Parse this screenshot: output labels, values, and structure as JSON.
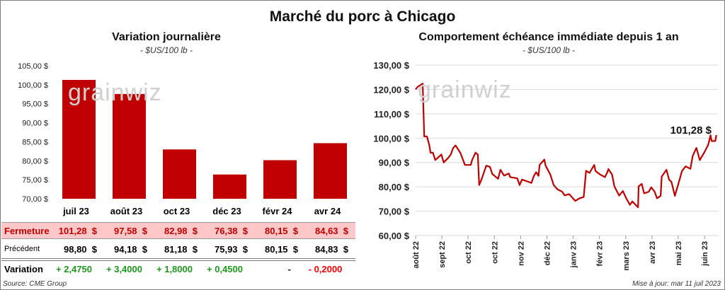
{
  "title": "Marché du porc à Chicago",
  "left": {
    "title": "Variation journalière",
    "unit": "- $US/100 lb -"
  },
  "right": {
    "title": "Comportement  échéance immédiate depuis 1 an",
    "unit": "- $US/100 lb -",
    "last_label": "101,28 $"
  },
  "watermark": "grainwiz",
  "table": {
    "months": [
      "juil 23",
      "août 23",
      "oct 23",
      "déc 23",
      "févr 24",
      "avr 24"
    ],
    "fermeture_label": "Fermeture",
    "fermeture": [
      "101,28  $",
      "97,58  $",
      "82,98  $",
      "76,38  $",
      "80,15  $",
      "84,63  $"
    ],
    "precedent_label": "Précédent",
    "precedent": [
      "98,80  $",
      "94,18  $",
      "81,18  $",
      "75,93  $",
      "80,15  $",
      "84,83  $"
    ],
    "variation_label": "Variation",
    "variation": [
      "+ 2,4750",
      "+ 3,4000",
      "+ 1,8000",
      "+ 0,4500",
      "-",
      "- 0,2000"
    ],
    "variation_sign": [
      "pos",
      "pos",
      "pos",
      "pos",
      "zero",
      "neg"
    ]
  },
  "source": "Source: CME Group",
  "updated": "Mise à jour: mar 11 juil 2023",
  "colors": {
    "bar": "#c00000",
    "line": "#c00000",
    "fermeture_bg": "#ffc7c7",
    "fermeture_text": "#c00000",
    "pos": "#1a9a1a",
    "neg": "#ff0000"
  },
  "chart_data": [
    {
      "type": "bar",
      "title": "Variation journalière",
      "ylabel": "$US/100 lb",
      "categories": [
        "juil 23",
        "août 23",
        "oct 23",
        "déc 23",
        "févr 24",
        "avr 24"
      ],
      "values": [
        101.28,
        97.58,
        82.98,
        76.38,
        80.15,
        84.63
      ],
      "ylim": [
        70,
        105
      ],
      "yticks": [
        "70,00 $",
        "75,00 $",
        "80,00 $",
        "85,00 $",
        "90,00 $",
        "95,00 $",
        "100,00 $",
        "105,00 $"
      ]
    },
    {
      "type": "line",
      "title": "Comportement  échéance immédiate depuis 1 an",
      "ylabel": "$US/100 lb",
      "ylim": [
        60,
        130
      ],
      "grid": true,
      "yticks": [
        "60,00 $",
        "70,00 $",
        "80,00 $",
        "90,00 $",
        "100,00 $",
        "110,00 $",
        "120,00 $",
        "130,00 $"
      ],
      "xticks": [
        "août 22",
        "sept 22",
        "oct 22",
        "oct 22",
        "nov 22",
        "déc 22",
        "janv 23",
        "févr 23",
        "mars 23",
        "avr 23",
        "mai 23",
        "juin 23"
      ],
      "x_unit": "months since start",
      "points": [
        [
          0,
          120
        ],
        [
          0.07,
          121
        ],
        [
          0.27,
          122.4
        ],
        [
          0.33,
          100.7
        ],
        [
          0.43,
          100.7
        ],
        [
          0.52,
          97.2
        ],
        [
          0.57,
          94
        ],
        [
          0.66,
          94
        ],
        [
          0.75,
          91
        ],
        [
          0.98,
          93.3
        ],
        [
          1.07,
          90
        ],
        [
          1.25,
          92
        ],
        [
          1.34,
          93.3
        ],
        [
          1.43,
          96
        ],
        [
          1.52,
          97
        ],
        [
          1.7,
          94
        ],
        [
          1.88,
          89
        ],
        [
          2.1,
          89
        ],
        [
          2.15,
          91
        ],
        [
          2.28,
          94
        ],
        [
          2.37,
          93.3
        ],
        [
          2.42,
          80.7
        ],
        [
          2.51,
          83
        ],
        [
          2.69,
          88.7
        ],
        [
          2.83,
          88.2
        ],
        [
          2.92,
          85.3
        ],
        [
          3.14,
          83.3
        ],
        [
          3.23,
          87
        ],
        [
          3.37,
          84.6
        ],
        [
          3.55,
          85.5
        ],
        [
          3.6,
          84
        ],
        [
          3.87,
          83.5
        ],
        [
          3.96,
          80.7
        ],
        [
          4.05,
          83
        ],
        [
          4.41,
          81.6
        ],
        [
          4.5,
          84.5
        ],
        [
          4.59,
          86
        ],
        [
          4.68,
          84.5
        ],
        [
          4.72,
          89
        ],
        [
          4.9,
          91.2
        ],
        [
          4.95,
          88.7
        ],
        [
          5.13,
          85
        ],
        [
          5.26,
          80.7
        ],
        [
          5.4,
          79
        ],
        [
          5.58,
          78
        ],
        [
          5.67,
          76.5
        ],
        [
          5.85,
          77
        ],
        [
          6.08,
          74.2
        ],
        [
          6.22,
          75.2
        ],
        [
          6.4,
          75.8
        ],
        [
          6.49,
          86.6
        ],
        [
          6.62,
          85.7
        ],
        [
          6.8,
          89
        ],
        [
          6.85,
          86.5
        ],
        [
          7.03,
          85
        ],
        [
          7.21,
          84
        ],
        [
          7.3,
          86
        ],
        [
          7.34,
          87.3
        ],
        [
          7.48,
          85
        ],
        [
          7.57,
          80.2
        ],
        [
          7.75,
          76.4
        ],
        [
          7.89,
          78.3
        ],
        [
          8.02,
          75.3
        ],
        [
          8.16,
          72.6
        ],
        [
          8.25,
          74
        ],
        [
          8.47,
          71.6
        ],
        [
          8.49,
          80.2
        ],
        [
          8.61,
          81.2
        ],
        [
          8.7,
          77.3
        ],
        [
          8.88,
          78
        ],
        [
          8.97,
          79.8
        ],
        [
          9.1,
          78
        ],
        [
          9.19,
          75.3
        ],
        [
          9.33,
          76.3
        ],
        [
          9.37,
          84.2
        ],
        [
          9.55,
          87
        ],
        [
          9.65,
          83
        ],
        [
          9.74,
          82
        ],
        [
          9.87,
          76.3
        ],
        [
          10.05,
          83
        ],
        [
          10.14,
          86.5
        ],
        [
          10.28,
          88.4
        ],
        [
          10.46,
          87.4
        ],
        [
          10.55,
          92.7
        ],
        [
          10.69,
          96
        ],
        [
          10.82,
          91
        ],
        [
          11,
          94.3
        ],
        [
          11.14,
          97.3
        ],
        [
          11.23,
          101.2
        ],
        [
          11.27,
          98.8
        ],
        [
          11.41,
          98.8
        ],
        [
          11.45,
          101.28
        ]
      ],
      "annotation": "101,28 $"
    }
  ]
}
